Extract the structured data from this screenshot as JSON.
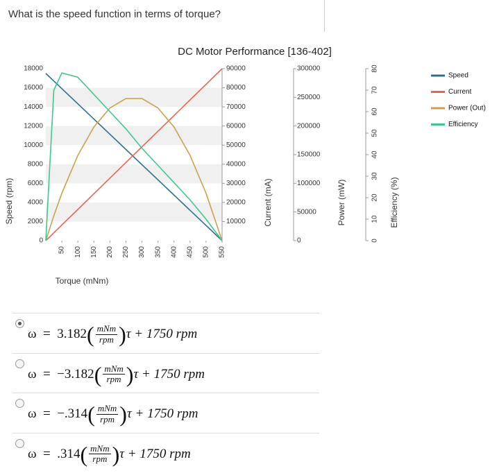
{
  "question": "What is the speed function in terms of torque?",
  "chart_data": {
    "type": "line",
    "title": "DC Motor Performance [136-402]",
    "x_label": "Torque (mNm)",
    "y_label": "Speed (rpm)",
    "y2_label": "Current (mA)",
    "y3_label": "Power (mW)",
    "y4_label": "Efficiency (%)",
    "x": [
      0,
      25,
      50,
      100,
      150,
      200,
      250,
      300,
      350,
      400,
      450,
      500,
      550
    ],
    "xlim": [
      0,
      550
    ],
    "xticks": [
      50,
      100,
      150,
      200,
      250,
      300,
      350,
      400,
      450,
      500,
      550
    ],
    "ylim": [
      0,
      18000
    ],
    "yticks": [
      0,
      2000,
      4000,
      6000,
      8000,
      10000,
      12000,
      14000,
      16000,
      18000
    ],
    "y2lim": [
      0,
      90000
    ],
    "y2ticks": [
      10000,
      20000,
      30000,
      40000,
      50000,
      60000,
      70000,
      80000,
      90000
    ],
    "y3lim": [
      0,
      300000
    ],
    "y3ticks": [
      0,
      50000,
      100000,
      150000,
      200000,
      250000,
      300000
    ],
    "y4lim": [
      0,
      80
    ],
    "y4ticks": [
      0,
      10,
      20,
      30,
      40,
      50,
      60,
      70,
      80
    ],
    "grid": true,
    "legend": "right",
    "series": [
      {
        "name": "Speed",
        "color": "#2b6f8f",
        "axis": "y",
        "values": [
          17500,
          16705,
          15909,
          14318,
          12727,
          11136,
          9545,
          7955,
          6364,
          4773,
          3182,
          1591,
          0
        ]
      },
      {
        "name": "Current",
        "color": "#f0604d",
        "axis": "y2",
        "values": [
          0,
          4091,
          8182,
          16364,
          24545,
          32727,
          40909,
          49091,
          57273,
          65455,
          73636,
          81818,
          90000
        ]
      },
      {
        "name": "Power (Out)",
        "color": "#c9a24a",
        "axis": "y3",
        "values": [
          0,
          43400,
          82600,
          148800,
          198300,
          231400,
          247900,
          247900,
          231400,
          198300,
          148800,
          82600,
          0
        ]
      },
      {
        "name": "Efficiency",
        "color": "#3cc98d",
        "axis": "y4",
        "values": [
          0,
          70,
          78,
          76,
          68,
          60,
          52,
          43,
          35,
          27,
          19,
          10,
          0
        ]
      }
    ]
  },
  "options": [
    {
      "lhs": "ω  =  3.182",
      "num": "mNm",
      "den": "rpm",
      "rhs": "τ + 1750 rpm",
      "selected": true
    },
    {
      "lhs": "ω  =  −3.182",
      "num": "mNm",
      "den": "rpm",
      "rhs": "τ + 1750 rpm",
      "selected": false
    },
    {
      "lhs": "ω  =  −.314",
      "num": "mNm",
      "den": "rpm",
      "rhs": "τ + 1750 rpm",
      "selected": false
    },
    {
      "lhs": "ω  =  .314",
      "num": "mNm",
      "den": "rpm",
      "rhs": "τ + 1750 rpm",
      "selected": false
    }
  ]
}
